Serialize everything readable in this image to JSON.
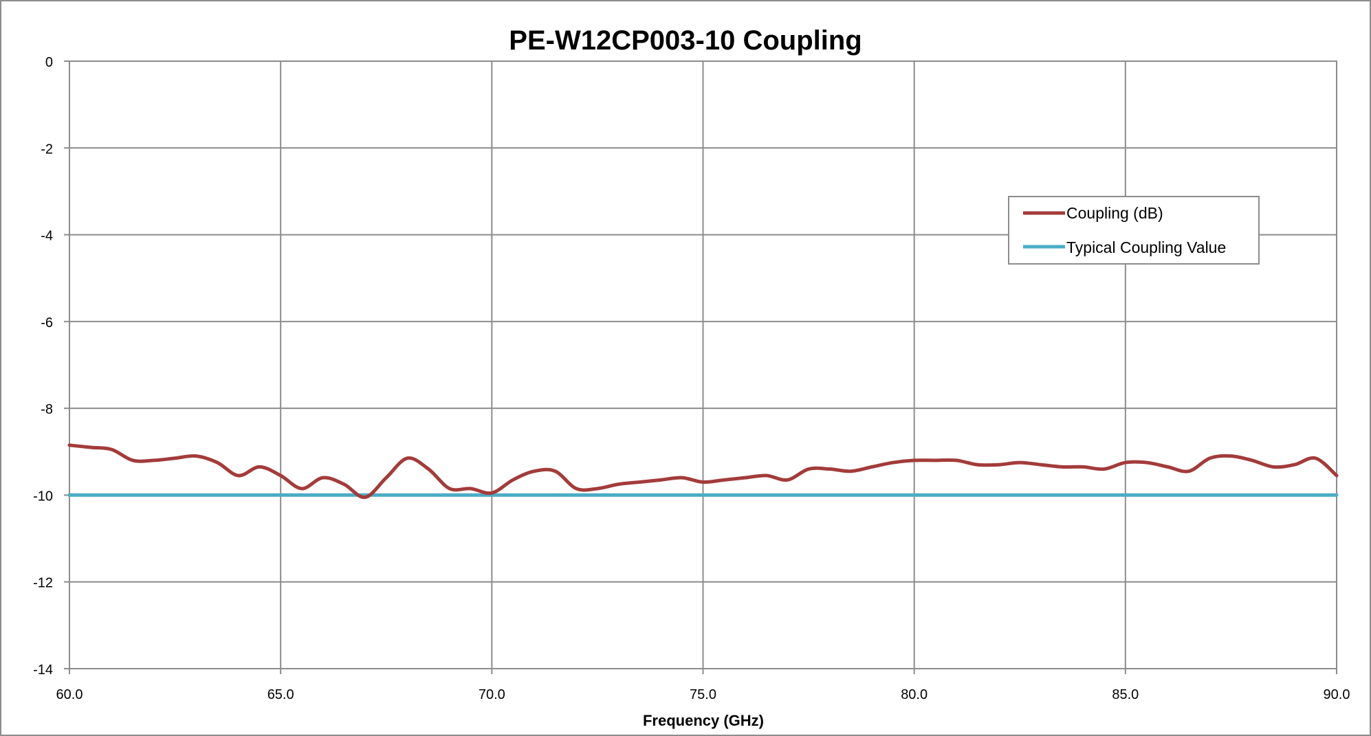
{
  "chart_data": {
    "type": "line",
    "title": "PE-W12CP003-10 Coupling",
    "xlabel": "Frequency (GHz)",
    "ylabel": "",
    "xlim": [
      60.0,
      90.0
    ],
    "ylim": [
      -14,
      0
    ],
    "x_ticks": [
      "60.0",
      "65.0",
      "70.0",
      "75.0",
      "80.0",
      "85.0",
      "90.0"
    ],
    "y_ticks": [
      "0",
      "-2",
      "-4",
      "-6",
      "-8",
      "-10",
      "-12",
      "-14"
    ],
    "grid": true,
    "legend_position": "top-right",
    "series": [
      {
        "name": "Coupling (dB)",
        "color": "#A33B3A",
        "x": [
          60.0,
          60.5,
          61.0,
          61.5,
          62.0,
          62.5,
          63.0,
          63.5,
          64.0,
          64.5,
          65.0,
          65.5,
          66.0,
          66.5,
          67.0,
          67.5,
          68.0,
          68.5,
          69.0,
          69.5,
          70.0,
          70.5,
          71.0,
          71.5,
          72.0,
          72.5,
          73.0,
          73.5,
          74.0,
          74.5,
          75.0,
          75.5,
          76.0,
          76.5,
          77.0,
          77.5,
          78.0,
          78.5,
          79.0,
          79.5,
          80.0,
          80.5,
          81.0,
          81.5,
          82.0,
          82.5,
          83.0,
          83.5,
          84.0,
          84.5,
          85.0,
          85.5,
          86.0,
          86.5,
          87.0,
          87.5,
          88.0,
          88.5,
          89.0,
          89.5,
          90.0
        ],
        "y": [
          -8.85,
          -8.9,
          -8.95,
          -9.2,
          -9.2,
          -9.15,
          -9.1,
          -9.25,
          -9.55,
          -9.35,
          -9.55,
          -9.85,
          -9.6,
          -9.75,
          -10.05,
          -9.6,
          -9.15,
          -9.4,
          -9.85,
          -9.85,
          -9.95,
          -9.65,
          -9.45,
          -9.45,
          -9.85,
          -9.85,
          -9.75,
          -9.7,
          -9.65,
          -9.6,
          -9.7,
          -9.65,
          -9.6,
          -9.55,
          -9.65,
          -9.4,
          -9.4,
          -9.45,
          -9.35,
          -9.25,
          -9.2,
          -9.2,
          -9.2,
          -9.3,
          -9.3,
          -9.25,
          -9.3,
          -9.35,
          -9.35,
          -9.4,
          -9.25,
          -9.25,
          -9.35,
          -9.45,
          -9.15,
          -9.1,
          -9.2,
          -9.35,
          -9.3,
          -9.15,
          -9.55
        ]
      },
      {
        "name": "Typical Coupling Value",
        "color": "#4BACC6",
        "x": [
          60.0,
          90.0
        ],
        "y": [
          -10,
          -10
        ]
      }
    ]
  }
}
